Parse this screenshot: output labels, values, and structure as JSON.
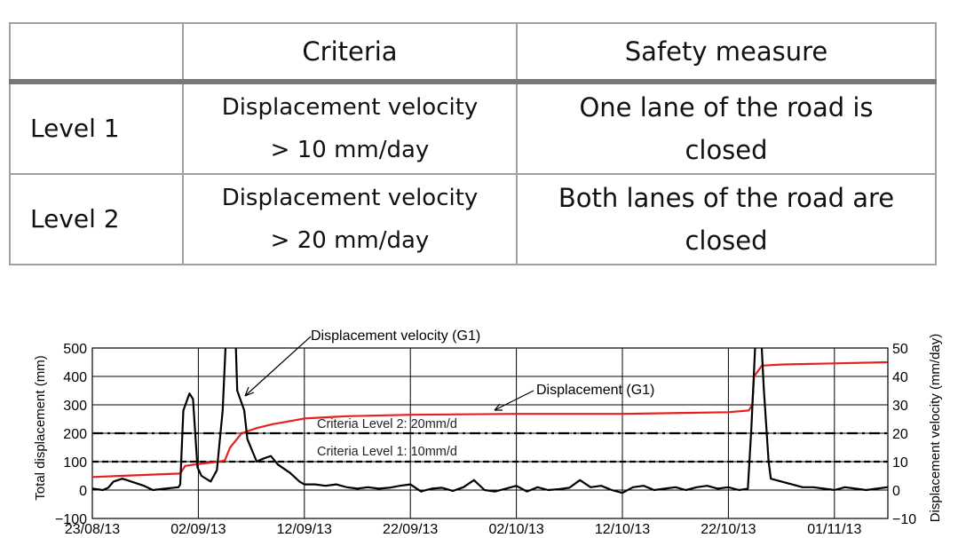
{
  "table": {
    "headers": [
      "",
      "Criteria",
      "Safety measure"
    ],
    "rows": [
      {
        "level": "Level 1",
        "criteria_line1": "Displacement velocity",
        "criteria_line2": "> 10 mm/day",
        "measure_line1": "One lane of the road is",
        "measure_line2": "closed"
      },
      {
        "level": "Level 2",
        "criteria_line1": "Displacement velocity",
        "criteria_line2": "> 20 mm/day",
        "measure_line1": "Both lanes of the road are",
        "measure_line2": "closed"
      }
    ]
  },
  "chart_data": {
    "type": "line",
    "ylabel": "Total displacement (mm)",
    "y2label": "Displacement velocity (mm/day)",
    "xlim": [
      "23/08/13",
      "06/11/13"
    ],
    "ylim": [
      -100,
      500
    ],
    "y2lim": [
      -10,
      50
    ],
    "x_ticks": [
      "23/08/13",
      "02/09/13",
      "12/09/13",
      "22/09/13",
      "02/10/13",
      "12/10/13",
      "22/10/13",
      "01/11/13"
    ],
    "y_ticks": [
      "500",
      "400",
      "300",
      "200",
      "100",
      "0",
      "−100"
    ],
    "y2_ticks": [
      "50",
      "40",
      "30",
      "20",
      "10",
      "0",
      "−10"
    ],
    "grid": true,
    "colors": {
      "displacement": "#e8201c",
      "velocity": "#000000",
      "grid": "#000000"
    },
    "annotations": {
      "velocity": "Displacement velocity (G1)",
      "displacement": "Displacement (G1)",
      "level2": "Criteria Level 2: 20mm/d",
      "level1": "Criteria Level 1: 10mm/d"
    },
    "thresholds": [
      {
        "axis": "y2",
        "value": 20,
        "style": "dash-dot"
      },
      {
        "axis": "y2",
        "value": 10,
        "style": "dashed"
      }
    ],
    "series": [
      {
        "name": "Displacement (G1)",
        "axis": "y",
        "points": [
          [
            "23/08/13 00",
            46
          ],
          [
            "27/08/13 00",
            52
          ],
          [
            "31/08/13 07",
            58
          ],
          [
            "31/08/13 18",
            85
          ],
          [
            "02/09/13 00",
            92
          ],
          [
            "04/09/13 00",
            100
          ],
          [
            "04/09/13 12",
            105
          ],
          [
            "05/09/13 00",
            150
          ],
          [
            "06/09/13 02",
            200
          ],
          [
            "07/09/13 12",
            218
          ],
          [
            "09/09/13 00",
            232
          ],
          [
            "12/09/13 00",
            252
          ],
          [
            "16/09/13 00",
            260
          ],
          [
            "22/09/13 00",
            265
          ],
          [
            "02/10/13 00",
            268
          ],
          [
            "12/10/13 00",
            268
          ],
          [
            "22/10/13 00",
            274
          ],
          [
            "23/10/13 22",
            280
          ],
          [
            "24/10/13 06",
            300
          ],
          [
            "24/10/13 10",
            400
          ],
          [
            "25/10/13 04",
            438
          ],
          [
            "27/10/13 00",
            442
          ],
          [
            "01/11/13 00",
            446
          ],
          [
            "06/11/13 00",
            450
          ]
        ]
      },
      {
        "name": "Displacement velocity (G1)",
        "axis": "y2",
        "points": [
          [
            "23/08/13 00",
            0.5
          ],
          [
            "24/08/13 00",
            0
          ],
          [
            "24/08/13 12",
            0.8
          ],
          [
            "25/08/13 00",
            3
          ],
          [
            "25/08/13 20",
            4
          ],
          [
            "26/08/13 16",
            3
          ],
          [
            "27/08/13 21",
            1.5
          ],
          [
            "28/08/13 17",
            0
          ],
          [
            "29/08/13 21",
            0.5
          ],
          [
            "31/08/13 03",
            1
          ],
          [
            "31/08/13 07",
            2
          ],
          [
            "31/08/13 14",
            28
          ],
          [
            "01/09/13 04",
            34
          ],
          [
            "01/09/13 12",
            32
          ],
          [
            "01/09/13 22",
            8
          ],
          [
            "02/09/13 07",
            5
          ],
          [
            "03/09/13 04",
            3
          ],
          [
            "03/09/13 18",
            7
          ],
          [
            "04/09/13 07",
            28
          ],
          [
            "04/09/13 15",
            55
          ],
          [
            "05/09/13 12",
            55
          ],
          [
            "05/09/13 16",
            35
          ],
          [
            "06/09/13 08",
            28
          ],
          [
            "06/09/13 15",
            18
          ],
          [
            "07/09/13 12",
            10
          ],
          [
            "08/09/13 02",
            11
          ],
          [
            "08/09/13 20",
            12
          ],
          [
            "09/09/13 12",
            9
          ],
          [
            "10/09/13 16",
            6
          ],
          [
            "11/09/13 13",
            3
          ],
          [
            "12/09/13 00",
            2
          ],
          [
            "13/09/13 00",
            2
          ],
          [
            "14/09/13 00",
            1.5
          ],
          [
            "15/09/13 00",
            2
          ],
          [
            "16/09/13 00",
            1
          ],
          [
            "17/09/13 00",
            0.5
          ],
          [
            "18/09/13 00",
            1
          ],
          [
            "19/09/13 00",
            0.5
          ],
          [
            "20/09/13 00",
            0.8
          ],
          [
            "21/09/13 00",
            1.5
          ],
          [
            "22/09/13 00",
            2
          ],
          [
            "23/09/13 00",
            -0.5
          ],
          [
            "24/09/13 00",
            0.5
          ],
          [
            "25/09/13 00",
            0.8
          ],
          [
            "26/09/13 00",
            -0.3
          ],
          [
            "27/09/13 00",
            1
          ],
          [
            "28/09/13 00",
            3.5
          ],
          [
            "29/09/13 00",
            0
          ],
          [
            "30/09/13 00",
            -0.5
          ],
          [
            "01/10/13 00",
            0.5
          ],
          [
            "02/10/13 00",
            1.5
          ],
          [
            "03/10/13 00",
            -0.5
          ],
          [
            "04/10/13 00",
            1
          ],
          [
            "05/10/13 00",
            0
          ],
          [
            "06/10/13 00",
            0.3
          ],
          [
            "07/10/13 00",
            0.8
          ],
          [
            "08/10/13 00",
            3.5
          ],
          [
            "09/10/13 00",
            1
          ],
          [
            "10/10/13 00",
            1.5
          ],
          [
            "11/10/13 00",
            0
          ],
          [
            "12/10/13 00",
            -1
          ],
          [
            "13/10/13 00",
            1
          ],
          [
            "14/10/13 00",
            1.5
          ],
          [
            "15/10/13 00",
            0
          ],
          [
            "16/10/13 00",
            0.5
          ],
          [
            "17/10/13 00",
            1
          ],
          [
            "18/10/13 00",
            0
          ],
          [
            "19/10/13 00",
            1
          ],
          [
            "20/10/13 00",
            1.5
          ],
          [
            "21/10/13 00",
            0.5
          ],
          [
            "22/10/13 00",
            1
          ],
          [
            "23/10/13 00",
            0
          ],
          [
            "23/10/13 20",
            0.5
          ],
          [
            "24/10/13 04",
            22
          ],
          [
            "24/10/13 14",
            55
          ],
          [
            "25/10/13 02",
            55
          ],
          [
            "25/10/13 08",
            36
          ],
          [
            "25/10/13 19",
            10
          ],
          [
            "26/10/13 00",
            4
          ],
          [
            "27/10/13 00",
            3
          ],
          [
            "28/10/13 00",
            2
          ],
          [
            "29/10/13 00",
            1
          ],
          [
            "30/10/13 00",
            1
          ],
          [
            "31/10/13 00",
            0.5
          ],
          [
            "01/11/13 00",
            0
          ],
          [
            "02/11/13 00",
            1
          ],
          [
            "03/11/13 00",
            0.5
          ],
          [
            "04/11/13 00",
            0
          ],
          [
            "05/11/13 00",
            0.5
          ],
          [
            "06/11/13 00",
            1
          ]
        ]
      }
    ]
  }
}
